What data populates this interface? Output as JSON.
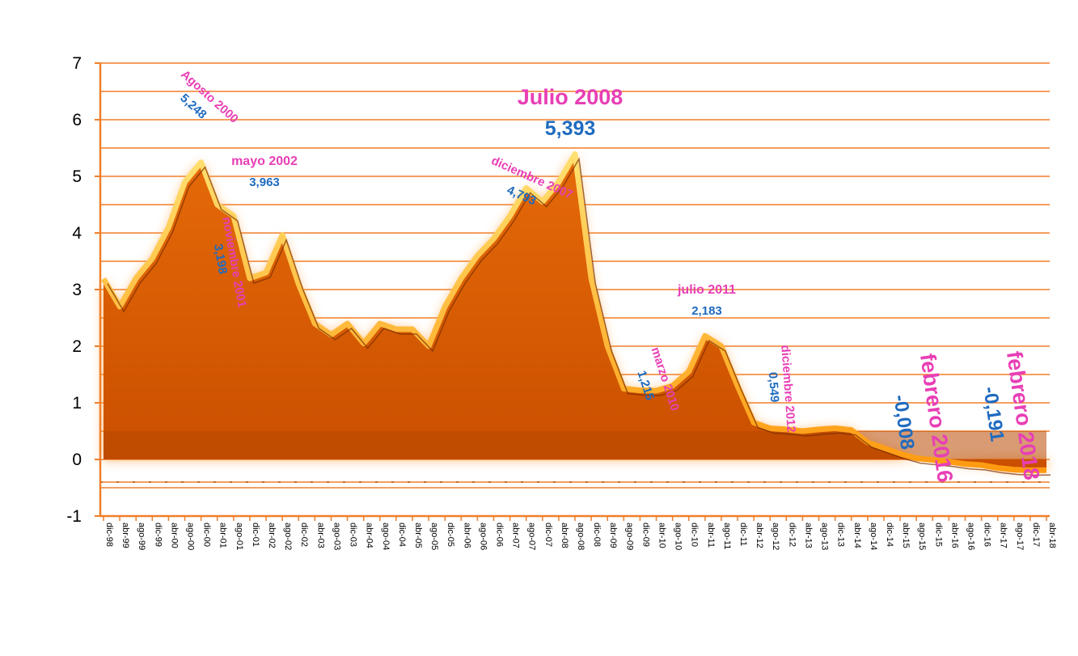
{
  "chart_data": {
    "type": "area",
    "title": "",
    "xlabel": "",
    "ylabel": "",
    "ylim": [
      -1,
      7
    ],
    "yticks": [
      "-1",
      "0",
      "1",
      "2",
      "3",
      "4",
      "5",
      "6",
      "7"
    ],
    "grid": true,
    "colors": {
      "area": "#d95a00",
      "highlight": "#ffc020",
      "grid": "#f07f2a",
      "label": "#e83fb5",
      "value": "#1f6bbf"
    },
    "x": [
      "dic-98",
      "abr-99",
      "ago-99",
      "dic-99",
      "abr-00",
      "ago-00",
      "dic-00",
      "abr-01",
      "ago-01",
      "dic-01",
      "abr-02",
      "ago-02",
      "dic-02",
      "abr-03",
      "ago-03",
      "dic-03",
      "abr-04",
      "ago-04",
      "dic-04",
      "abr-05",
      "ago-05",
      "dic-05",
      "abr-06",
      "ago-06",
      "dic-06",
      "abr-07",
      "ago-07",
      "dic-07",
      "abr-08",
      "ago-08",
      "dic-08",
      "abr-09",
      "ago-09",
      "dic-09",
      "abr-10",
      "ago-10",
      "dic-10",
      "abr-11",
      "ago-11",
      "dic-11",
      "abr-12",
      "ago-12",
      "dic-12",
      "abr-13",
      "ago-13",
      "dic-13",
      "abr-14",
      "ago-14",
      "dic-14",
      "abr-15",
      "ago-15",
      "dic-15",
      "abr-16",
      "ago-16",
      "dic-16",
      "abr-17",
      "ago-17",
      "dic-17",
      "abr-18"
    ],
    "series": [
      {
        "values": [
          3.19,
          2.7,
          3.2,
          3.55,
          4.1,
          4.9,
          5.248,
          4.5,
          4.3,
          3.198,
          3.3,
          3.963,
          3.1,
          2.4,
          2.2,
          2.4,
          2.05,
          2.4,
          2.3,
          2.3,
          2.0,
          2.7,
          3.2,
          3.6,
          3.9,
          4.3,
          4.793,
          4.55,
          4.9,
          5.393,
          3.2,
          2.0,
          1.25,
          1.22,
          1.215,
          1.3,
          1.55,
          2.183,
          2.0,
          1.3,
          0.65,
          0.549,
          0.53,
          0.5,
          0.53,
          0.55,
          0.52,
          0.3,
          0.2,
          0.1,
          0.02,
          -0.008,
          -0.04,
          -0.08,
          -0.1,
          -0.15,
          -0.18,
          -0.191,
          -0.19
        ]
      }
    ],
    "annotations": [
      {
        "label": "Agosto 2000",
        "value": "5,248"
      },
      {
        "label": "mayo 2002",
        "value": "3,963"
      },
      {
        "label": "noviembre 2001",
        "value": "3,198"
      },
      {
        "label": "diciembre 2007",
        "value": "4,793"
      },
      {
        "label": "Julio 2008",
        "value": "5,393"
      },
      {
        "label": "marzo 2010",
        "value": "1,215"
      },
      {
        "label": "julio 2011",
        "value": "2,183"
      },
      {
        "label": "diciembre 2012",
        "value": "0,549"
      },
      {
        "label": "febrero 2016",
        "value": "-0,008"
      },
      {
        "label": "febrero 2018",
        "value": "-0,191"
      }
    ]
  }
}
